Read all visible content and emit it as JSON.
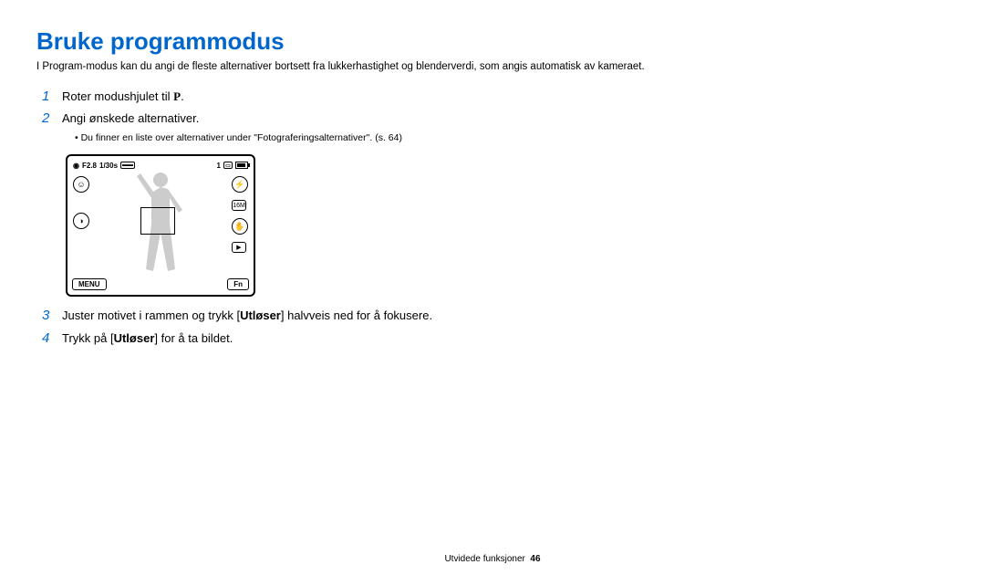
{
  "title": "Bruke programmodus",
  "intro": "I Program-modus kan du angi de fleste alternativer bortsett fra lukkerhastighet og blenderverdi, som angis automatisk av kameraet.",
  "steps": [
    {
      "num": "1",
      "html": "Roter modushjulet til <span class='mode-p'>P</span>."
    },
    {
      "num": "2",
      "html": "Angi ønskede alternativer."
    }
  ],
  "sub_bullet": "Du finner en liste over alternativer under \"Fotograferingsalternativer\". (s. 64)",
  "steps_after": [
    {
      "num": "3",
      "html": "Juster motivet i rammen og trykk [<span class='bold'>Utløser</span>] halvveis ned for å fokusere."
    },
    {
      "num": "4",
      "html": "Trykk på [<span class='bold'>Utløser</span>] for å ta bildet."
    }
  ],
  "camera": {
    "aperture": "F2.8",
    "shutter": "1/30s",
    "count": "1",
    "menu_label": "MENU",
    "fn_label": "Fn"
  },
  "footer_text": "Utvidede funksjoner",
  "footer_page": "46",
  "colors": {
    "title": "#0066cc",
    "text": "#000000",
    "bg": "#ffffff"
  }
}
